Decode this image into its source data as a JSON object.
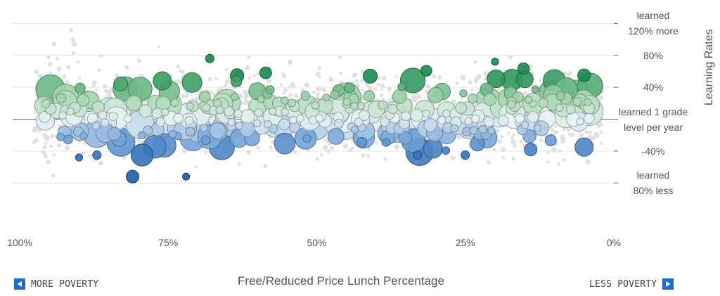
{
  "chart_data": {
    "type": "scatter",
    "xlabel": "Free/Reduced Price Lunch Percentage",
    "ylabel": "Learning Rates",
    "x_ticks": [
      "100%",
      "75%",
      "50%",
      "25%",
      "0%"
    ],
    "x_range": [
      100,
      0
    ],
    "y_range": [
      -115,
      145
    ],
    "y_ticks": [
      {
        "value": 120,
        "lines": [
          "learned",
          "120% more"
        ]
      },
      {
        "value": 80,
        "lines": [
          "80%"
        ]
      },
      {
        "value": 40,
        "lines": [
          "40%"
        ]
      },
      {
        "value": 0,
        "lines": [
          "learned 1 grade",
          "level per year"
        ]
      },
      {
        "value": -40,
        "lines": [
          "-40%"
        ]
      },
      {
        "value": -80,
        "lines": [
          "learned",
          "80% less"
        ]
      }
    ],
    "color_scale": {
      "low": "#1f5fa8",
      "mid": "#eaf3f7",
      "high": "#1c8a4e"
    },
    "highlighted_points": [
      {
        "x": 68,
        "y": 76,
        "size": 6
      },
      {
        "x": 20,
        "y": 72,
        "size": 5
      },
      {
        "x": 41,
        "y": 54,
        "size": 10
      },
      {
        "x": 76,
        "y": 48,
        "size": 13
      },
      {
        "x": 71,
        "y": 46,
        "size": 14
      },
      {
        "x": 15,
        "y": 50,
        "size": 12
      },
      {
        "x": 10,
        "y": 48,
        "size": 16
      },
      {
        "x": 5,
        "y": 55,
        "size": 9
      },
      {
        "x": 4,
        "y": 42,
        "size": 18
      },
      {
        "x": 8,
        "y": 38,
        "size": 16
      },
      {
        "x": 83,
        "y": 44,
        "size": 10
      },
      {
        "x": 60,
        "y": 35,
        "size": 12
      },
      {
        "x": 30,
        "y": 30,
        "size": 11
      },
      {
        "x": 87,
        "y": -45,
        "size": 6
      },
      {
        "x": 90,
        "y": -48,
        "size": 5
      },
      {
        "x": 81,
        "y": -72,
        "size": 9
      },
      {
        "x": 72,
        "y": -72,
        "size": 5
      },
      {
        "x": 66,
        "y": -35,
        "size": 18
      },
      {
        "x": 5,
        "y": -35,
        "size": 13
      },
      {
        "x": 25,
        "y": -45,
        "size": 6
      },
      {
        "x": 33,
        "y": -45,
        "size": 6
      },
      {
        "x": 14,
        "y": -38,
        "size": 9
      }
    ]
  },
  "nav": {
    "left": "MORE POVERTY",
    "right": "LESS POVERTY"
  }
}
